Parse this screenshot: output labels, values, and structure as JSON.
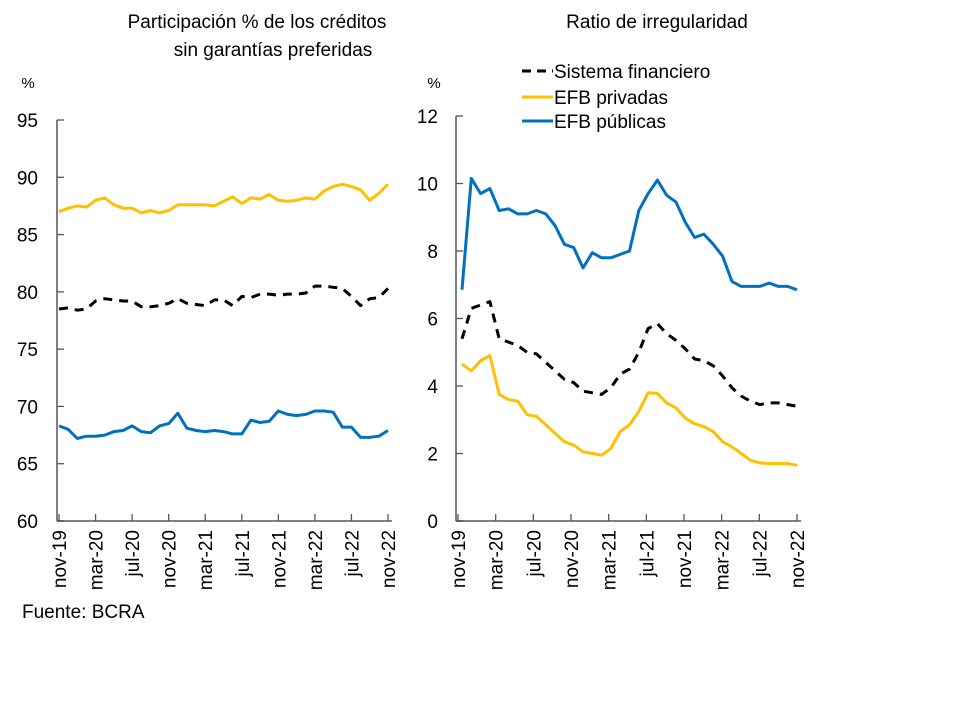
{
  "source": "Fuente: BCRA",
  "colors": {
    "sistema": "#000000",
    "privadas": "#FFC000",
    "publicas": "#0070C0"
  },
  "chart_data": [
    {
      "type": "line",
      "title_lines": [
        "Participación % de los créditos",
        "sin garantías preferidas"
      ],
      "ylabel": "%",
      "ylim": [
        60,
        95
      ],
      "yticks": [
        60,
        65,
        70,
        75,
        80,
        85,
        90,
        95
      ],
      "xtick_labels": [
        "nov-19",
        "mar-20",
        "jul-20",
        "nov-20",
        "mar-21",
        "jul-21",
        "nov-21",
        "mar-22",
        "jul-22",
        "nov-22"
      ],
      "x_start": "nov-19",
      "x_end": "nov-22",
      "frequency": "monthly",
      "grid": false,
      "series": [
        {
          "name": "EFB privadas",
          "style": "solid",
          "color_key": "privadas",
          "values": [
            87.0,
            87.3,
            87.5,
            87.4,
            88.0,
            88.2,
            87.6,
            87.3,
            87.3,
            86.9,
            87.1,
            86.9,
            87.1,
            87.6,
            87.6,
            87.6,
            87.6,
            87.5,
            87.9,
            88.3,
            87.7,
            88.2,
            88.1,
            88.5,
            88.0,
            87.9,
            88.0,
            88.2,
            88.1,
            88.8,
            89.2,
            89.4,
            89.2,
            88.9,
            88.0,
            88.6,
            89.4
          ]
        },
        {
          "name": "Sistema financiero",
          "style": "dashed",
          "color_key": "sistema",
          "values": [
            78.5,
            78.6,
            78.4,
            78.5,
            79.2,
            79.4,
            79.3,
            79.2,
            79.2,
            78.7,
            78.7,
            78.8,
            79.0,
            79.4,
            79.0,
            78.9,
            78.8,
            79.3,
            79.3,
            78.8,
            79.6,
            79.5,
            79.8,
            79.8,
            79.7,
            79.8,
            79.8,
            79.9,
            80.5,
            80.5,
            80.4,
            80.3,
            79.6,
            78.8,
            79.4,
            79.5,
            80.3
          ]
        },
        {
          "name": "EFB públicas",
          "style": "solid",
          "color_key": "publicas",
          "values": [
            68.3,
            68.0,
            67.2,
            67.4,
            67.4,
            67.5,
            67.8,
            67.9,
            68.3,
            67.8,
            67.7,
            68.3,
            68.5,
            69.4,
            68.1,
            67.9,
            67.8,
            67.9,
            67.8,
            67.6,
            67.6,
            68.8,
            68.6,
            68.7,
            69.6,
            69.3,
            69.2,
            69.3,
            69.6,
            69.6,
            69.5,
            68.2,
            68.2,
            67.3,
            67.3,
            67.4,
            67.9
          ]
        }
      ]
    },
    {
      "type": "line",
      "title_lines": [
        "Ratio de irregularidad"
      ],
      "ylabel": "%",
      "ylim": [
        0,
        12
      ],
      "yticks": [
        0,
        2,
        4,
        6,
        8,
        10,
        12
      ],
      "xtick_labels": [
        "nov-19",
        "mar-20",
        "jul-20",
        "nov-20",
        "mar-21",
        "jul-21",
        "nov-21",
        "mar-22",
        "jul-22",
        "nov-22"
      ],
      "x_start": "nov-19",
      "x_end": "nov-22",
      "frequency": "monthly",
      "grid": false,
      "legend": {
        "placement": "top-right",
        "entries": [
          {
            "label": "Sistema financiero",
            "style": "dashed",
            "color_key": "sistema"
          },
          {
            "label": "EFB privadas",
            "style": "solid",
            "color_key": "privadas"
          },
          {
            "label": "EFB públicas",
            "style": "solid",
            "color_key": "publicas"
          }
        ]
      },
      "series": [
        {
          "name": "Sistema financiero",
          "style": "dashed",
          "color_key": "sistema",
          "values": [
            5.4,
            6.3,
            6.4,
            6.5,
            5.4,
            5.3,
            5.2,
            5.0,
            4.95,
            4.7,
            4.45,
            4.2,
            4.1,
            3.85,
            3.8,
            3.75,
            3.95,
            4.35,
            4.5,
            5.0,
            5.7,
            5.85,
            5.55,
            5.35,
            5.1,
            4.8,
            4.75,
            4.6,
            4.3,
            3.95,
            3.7,
            3.55,
            3.45,
            3.5,
            3.5,
            3.45,
            3.4
          ]
        },
        {
          "name": "EFB privadas",
          "style": "solid",
          "color_key": "privadas",
          "values": [
            4.65,
            4.45,
            4.75,
            4.9,
            3.75,
            3.6,
            3.55,
            3.15,
            3.1,
            2.85,
            2.6,
            2.35,
            2.25,
            2.05,
            2.0,
            1.95,
            2.15,
            2.65,
            2.85,
            3.25,
            3.8,
            3.78,
            3.5,
            3.35,
            3.05,
            2.88,
            2.8,
            2.65,
            2.35,
            2.2,
            2.0,
            1.8,
            1.72,
            1.7,
            1.7,
            1.7,
            1.65
          ]
        },
        {
          "name": "EFB públicas",
          "style": "solid",
          "color_key": "publicas",
          "values": [
            6.85,
            10.15,
            9.7,
            9.85,
            9.2,
            9.25,
            9.1,
            9.1,
            9.2,
            9.1,
            8.75,
            8.2,
            8.1,
            7.5,
            7.95,
            7.8,
            7.8,
            7.9,
            8.0,
            9.2,
            9.7,
            10.1,
            9.65,
            9.45,
            8.85,
            8.4,
            8.5,
            8.2,
            7.85,
            7.1,
            6.95,
            6.95,
            6.95,
            7.05,
            6.95,
            6.95,
            6.85
          ]
        }
      ]
    }
  ]
}
